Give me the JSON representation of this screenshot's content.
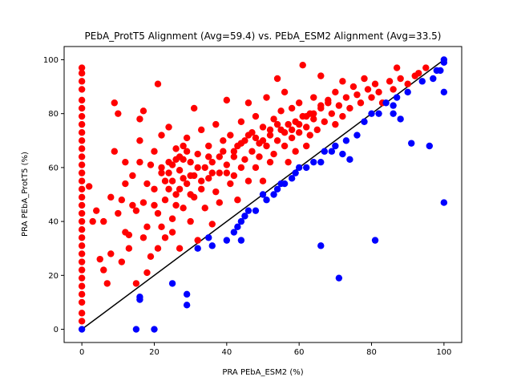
{
  "chart_data": {
    "type": "scatter",
    "title": "PEbA_ProtT5 Alignment (Avg=59.4) vs. PEbA_ESM2 Alignment (Avg=33.5)",
    "xlabel": "PRA PEbA_ESM2 (%)",
    "ylabel": "PRA PEbA_ProtT5 (%)",
    "xlim": [
      -4.9,
      104.9
    ],
    "ylim": [
      -4.9,
      104.9
    ],
    "xticks": [
      0,
      20,
      40,
      60,
      80,
      100
    ],
    "yticks": [
      0,
      20,
      40,
      60,
      80,
      100
    ],
    "grid": false,
    "colors": {
      "above_diagonal": "#ff0000",
      "below_diagonal": "#0000ff",
      "diagonal": "#000000"
    },
    "series": [
      {
        "color": "#ff0000",
        "points": [
          [
            0,
            97
          ],
          [
            0,
            95
          ],
          [
            0,
            92
          ],
          [
            0,
            89
          ],
          [
            0,
            85
          ],
          [
            0,
            82
          ],
          [
            0,
            79
          ],
          [
            0,
            76
          ],
          [
            0,
            73
          ],
          [
            0,
            70
          ],
          [
            0,
            67
          ],
          [
            0,
            64
          ],
          [
            0,
            61
          ],
          [
            0,
            58
          ],
          [
            0,
            55
          ],
          [
            0,
            52
          ],
          [
            0,
            49
          ],
          [
            0,
            46
          ],
          [
            0,
            43
          ],
          [
            0,
            40
          ],
          [
            0,
            37
          ],
          [
            0,
            34
          ],
          [
            0,
            31
          ],
          [
            0,
            28
          ],
          [
            0,
            25
          ],
          [
            0,
            22
          ],
          [
            0,
            19
          ],
          [
            0,
            16
          ],
          [
            0,
            13
          ],
          [
            0,
            10
          ],
          [
            0,
            6
          ],
          [
            0,
            3
          ],
          [
            2,
            53
          ],
          [
            3,
            40
          ],
          [
            4,
            44
          ],
          [
            5,
            26
          ],
          [
            6,
            40
          ],
          [
            7,
            17
          ],
          [
            8,
            49
          ],
          [
            9,
            66
          ],
          [
            9,
            84
          ],
          [
            10,
            80
          ],
          [
            11,
            48
          ],
          [
            12,
            62
          ],
          [
            12,
            36
          ],
          [
            13,
            30
          ],
          [
            14,
            57
          ],
          [
            15,
            44
          ],
          [
            15,
            17
          ],
          [
            16,
            78
          ],
          [
            16,
            70
          ],
          [
            17,
            47
          ],
          [
            17,
            81
          ],
          [
            18,
            38
          ],
          [
            18,
            21
          ],
          [
            19,
            61
          ],
          [
            20,
            66
          ],
          [
            20,
            52
          ],
          [
            21,
            91
          ],
          [
            21,
            43
          ],
          [
            22,
            58
          ],
          [
            22,
            72
          ],
          [
            23,
            48
          ],
          [
            23,
            34
          ],
          [
            24,
            62
          ],
          [
            24,
            75
          ],
          [
            25,
            55
          ],
          [
            25,
            41
          ],
          [
            26,
            67
          ],
          [
            26,
            50
          ],
          [
            27,
            59
          ],
          [
            27,
            30
          ],
          [
            28,
            45
          ],
          [
            28,
            63
          ],
          [
            29,
            54
          ],
          [
            29,
            71
          ],
          [
            30,
            57
          ],
          [
            30,
            40
          ],
          [
            31,
            82
          ],
          [
            31,
            49
          ],
          [
            32,
            65
          ],
          [
            32,
            33
          ],
          [
            33,
            52
          ],
          [
            33,
            74
          ],
          [
            34,
            60
          ],
          [
            34,
            45
          ],
          [
            35,
            68
          ],
          [
            35,
            56
          ],
          [
            36,
            62
          ],
          [
            36,
            39
          ],
          [
            37,
            76
          ],
          [
            37,
            51
          ],
          [
            38,
            58
          ],
          [
            38,
            47
          ],
          [
            39,
            66
          ],
          [
            39,
            70
          ],
          [
            40,
            61
          ],
          [
            40,
            85
          ],
          [
            41,
            54
          ],
          [
            41,
            72
          ],
          [
            42,
            64
          ],
          [
            42,
            57
          ],
          [
            43,
            68
          ],
          [
            43,
            48
          ],
          [
            44,
            77
          ],
          [
            44,
            60
          ],
          [
            45,
            70
          ],
          [
            45,
            63
          ],
          [
            46,
            84
          ],
          [
            46,
            55
          ],
          [
            47,
            66
          ],
          [
            47,
            73
          ],
          [
            48,
            60
          ],
          [
            48,
            79
          ],
          [
            49,
            69
          ],
          [
            49,
            64
          ],
          [
            50,
            75
          ],
          [
            50,
            55
          ],
          [
            51,
            86
          ],
          [
            51,
            68
          ],
          [
            52,
            72
          ],
          [
            52,
            62
          ],
          [
            53,
            78
          ],
          [
            53,
            65
          ],
          [
            54,
            70
          ],
          [
            54,
            93
          ],
          [
            55,
            74
          ],
          [
            55,
            81
          ],
          [
            56,
            68
          ],
          [
            56,
            88
          ],
          [
            57,
            76
          ],
          [
            57,
            62
          ],
          [
            58,
            82
          ],
          [
            58,
            71
          ],
          [
            59,
            77
          ],
          [
            59,
            66
          ],
          [
            60,
            73
          ],
          [
            60,
            84
          ],
          [
            61,
            98
          ],
          [
            61,
            79
          ],
          [
            62,
            75
          ],
          [
            62,
            68
          ],
          [
            63,
            80
          ],
          [
            63,
            72
          ],
          [
            64,
            86
          ],
          [
            64,
            78
          ],
          [
            65,
            74
          ],
          [
            66,
            94
          ],
          [
            66,
            82
          ],
          [
            67,
            77
          ],
          [
            68,
            84
          ],
          [
            69,
            80
          ],
          [
            70,
            88
          ],
          [
            70,
            76
          ],
          [
            71,
            83
          ],
          [
            72,
            92
          ],
          [
            72,
            79
          ],
          [
            73,
            86
          ],
          [
            74,
            82
          ],
          [
            75,
            90
          ],
          [
            76,
            87
          ],
          [
            77,
            84
          ],
          [
            78,
            93
          ],
          [
            79,
            89
          ],
          [
            80,
            86
          ],
          [
            81,
            91
          ],
          [
            82,
            88
          ],
          [
            83,
            84
          ],
          [
            85,
            92
          ],
          [
            86,
            89
          ],
          [
            87,
            97
          ],
          [
            88,
            93
          ],
          [
            90,
            91
          ],
          [
            92,
            94
          ],
          [
            93,
            95
          ],
          [
            95,
            97
          ],
          [
            26,
            63
          ],
          [
            28,
            56
          ],
          [
            30,
            62
          ],
          [
            24,
            58
          ],
          [
            27,
            52
          ],
          [
            29,
            66
          ],
          [
            25,
            61
          ],
          [
            31,
            57
          ],
          [
            23,
            55
          ],
          [
            26,
            46
          ],
          [
            32,
            60
          ],
          [
            28,
            68
          ],
          [
            24,
            52
          ],
          [
            30,
            50
          ],
          [
            27,
            64
          ],
          [
            33,
            55
          ],
          [
            22,
            60
          ],
          [
            35,
            64
          ],
          [
            36,
            58
          ],
          [
            38,
            64
          ],
          [
            40,
            58
          ],
          [
            42,
            66
          ],
          [
            44,
            69
          ],
          [
            46,
            72
          ],
          [
            48,
            71
          ],
          [
            50,
            70
          ],
          [
            52,
            74
          ],
          [
            54,
            76
          ],
          [
            56,
            73
          ],
          [
            58,
            74
          ],
          [
            60,
            76
          ],
          [
            62,
            79
          ],
          [
            64,
            80
          ],
          [
            66,
            83
          ],
          [
            68,
            85
          ],
          [
            18,
            54
          ],
          [
            16,
            62
          ],
          [
            14,
            46
          ],
          [
            12,
            54
          ],
          [
            10,
            43
          ],
          [
            20,
            46
          ],
          [
            22,
            38
          ],
          [
            25,
            36
          ],
          [
            21,
            30
          ],
          [
            17,
            34
          ],
          [
            8,
            28
          ],
          [
            11,
            25
          ],
          [
            13,
            35
          ],
          [
            19,
            27
          ],
          [
            6,
            22
          ]
        ]
      },
      {
        "color": "#0000ff",
        "points": [
          [
            0,
            0
          ],
          [
            15,
            0
          ],
          [
            20,
            0
          ],
          [
            16,
            11
          ],
          [
            16,
            12
          ],
          [
            25,
            17
          ],
          [
            29,
            9
          ],
          [
            29,
            13
          ],
          [
            32,
            30
          ],
          [
            35,
            34
          ],
          [
            36,
            31
          ],
          [
            40,
            33
          ],
          [
            42,
            36
          ],
          [
            43,
            38
          ],
          [
            44,
            33
          ],
          [
            44,
            40
          ],
          [
            45,
            42
          ],
          [
            46,
            44
          ],
          [
            48,
            44
          ],
          [
            50,
            50
          ],
          [
            51,
            48
          ],
          [
            53,
            50
          ],
          [
            54,
            52
          ],
          [
            55,
            54
          ],
          [
            56,
            54
          ],
          [
            58,
            56
          ],
          [
            59,
            58
          ],
          [
            60,
            60
          ],
          [
            62,
            60
          ],
          [
            64,
            62
          ],
          [
            66,
            62
          ],
          [
            66,
            31
          ],
          [
            67,
            66
          ],
          [
            69,
            66
          ],
          [
            70,
            68
          ],
          [
            71,
            19
          ],
          [
            72,
            65
          ],
          [
            73,
            70
          ],
          [
            74,
            63
          ],
          [
            76,
            72
          ],
          [
            78,
            77
          ],
          [
            80,
            80
          ],
          [
            81,
            33
          ],
          [
            82,
            80
          ],
          [
            84,
            84
          ],
          [
            86,
            83
          ],
          [
            86,
            80
          ],
          [
            87,
            86
          ],
          [
            88,
            78
          ],
          [
            90,
            88
          ],
          [
            91,
            69
          ],
          [
            94,
            92
          ],
          [
            96,
            68
          ],
          [
            97,
            93
          ],
          [
            98,
            96
          ],
          [
            99,
            96
          ],
          [
            100,
            100
          ],
          [
            100,
            99
          ],
          [
            100,
            88
          ],
          [
            100,
            47
          ]
        ]
      }
    ],
    "diagonal": [
      [
        0,
        0
      ],
      [
        100,
        100
      ]
    ]
  }
}
